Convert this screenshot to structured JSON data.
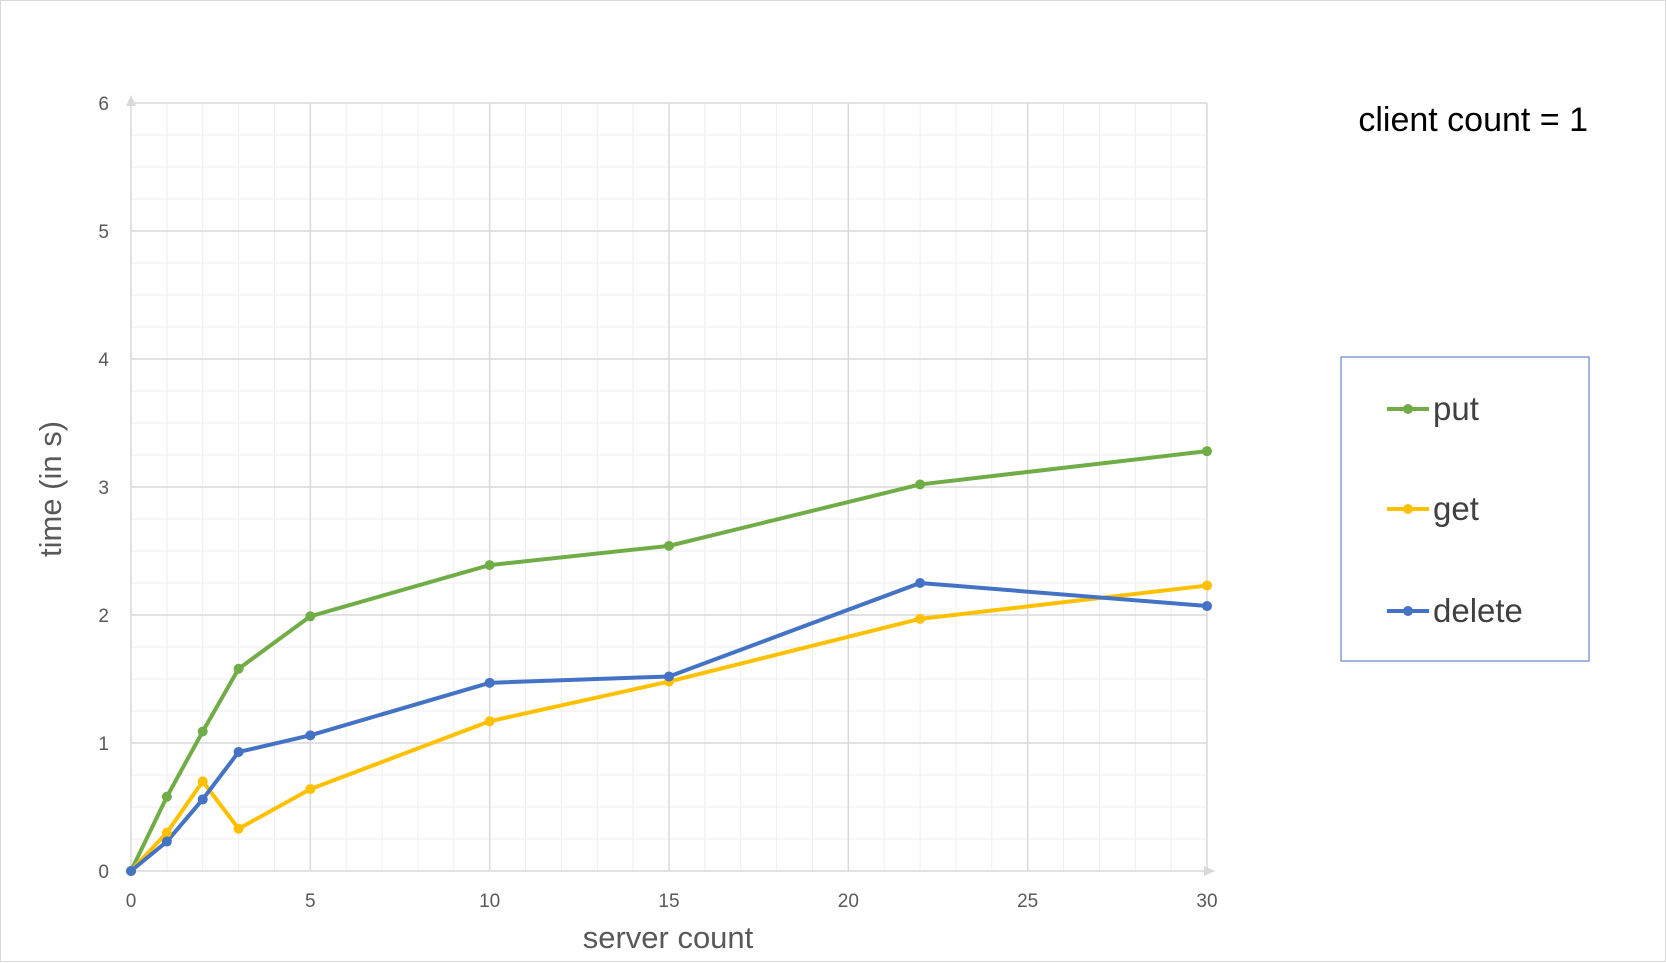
{
  "chart_data": {
    "type": "line",
    "annotation": "client count = 1",
    "xlabel": "server count",
    "ylabel": "time (in s)",
    "xlim": [
      0,
      30
    ],
    "ylim": [
      0,
      6
    ],
    "xticks": [
      0,
      5,
      10,
      15,
      20,
      25,
      30
    ],
    "yticks": [
      0,
      1,
      2,
      3,
      4,
      5,
      6
    ],
    "grid": true,
    "legend_position": "right",
    "series": [
      {
        "name": "put",
        "color": "#70ad47",
        "x": [
          0,
          1,
          2,
          3,
          5,
          10,
          15,
          22,
          30
        ],
        "y": [
          0,
          0.58,
          1.09,
          1.58,
          1.99,
          2.39,
          2.54,
          3.02,
          3.28
        ]
      },
      {
        "name": "get",
        "color": "#ffc000",
        "x": [
          0,
          1,
          2,
          3,
          5,
          10,
          15,
          22,
          30
        ],
        "y": [
          0,
          0.3,
          0.7,
          0.33,
          0.64,
          1.17,
          1.48,
          1.97,
          2.23
        ]
      },
      {
        "name": "delete",
        "color": "#4472c4",
        "x": [
          0,
          1,
          2,
          3,
          5,
          10,
          15,
          22,
          30
        ],
        "y": [
          0,
          0.23,
          0.56,
          0.93,
          1.06,
          1.47,
          1.52,
          2.25,
          2.07
        ]
      }
    ]
  }
}
